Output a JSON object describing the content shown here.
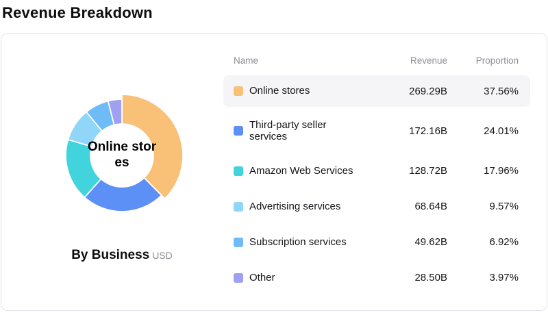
{
  "page_title": "Revenue Breakdown",
  "card": {
    "chart": {
      "center_label": "Online stores",
      "caption": "By Business",
      "caption_unit": "USD"
    },
    "table": {
      "columns": {
        "name": "Name",
        "revenue": "Revenue",
        "proportion": "Proportion"
      },
      "rows": [
        {
          "name": "Online stores",
          "revenue": "269.29B",
          "proportion": "37.56%",
          "color": "#F9C178",
          "highlighted": true
        },
        {
          "name": "Third-party seller services",
          "revenue": "172.16B",
          "proportion": "24.01%",
          "color": "#5C90F7",
          "highlighted": false
        },
        {
          "name": "Amazon Web Services",
          "revenue": "128.72B",
          "proportion": "17.96%",
          "color": "#41D4DC",
          "highlighted": false
        },
        {
          "name": "Advertising services",
          "revenue": "68.64B",
          "proportion": "9.57%",
          "color": "#8FD6F8",
          "highlighted": false
        },
        {
          "name": "Subscription services",
          "revenue": "49.62B",
          "proportion": "6.92%",
          "color": "#6FBBF7",
          "highlighted": false
        },
        {
          "name": "Other",
          "revenue": "28.50B",
          "proportion": "3.97%",
          "color": "#9FA0F1",
          "highlighted": false
        }
      ]
    }
  },
  "chart_data": {
    "type": "pie",
    "donut": true,
    "title": "Revenue Breakdown",
    "subtitle": "By Business",
    "unit": "USD",
    "center_label": "Online stores",
    "categories": [
      "Online stores",
      "Third-party seller services",
      "Amazon Web Services",
      "Advertising services",
      "Subscription services",
      "Other"
    ],
    "values": [
      269.29,
      172.16,
      128.72,
      68.64,
      49.62,
      28.5
    ],
    "proportions_pct": [
      37.56,
      24.01,
      17.96,
      9.57,
      6.92,
      3.97
    ],
    "colors": [
      "#F9C178",
      "#5C90F7",
      "#41D4DC",
      "#8FD6F8",
      "#6FBBF7",
      "#9FA0F1"
    ],
    "highlight_index": 0,
    "start_angle_deg": 0,
    "direction": "clockwise",
    "inner_radius_ratio": 0.56,
    "legend_position": "table-right"
  }
}
